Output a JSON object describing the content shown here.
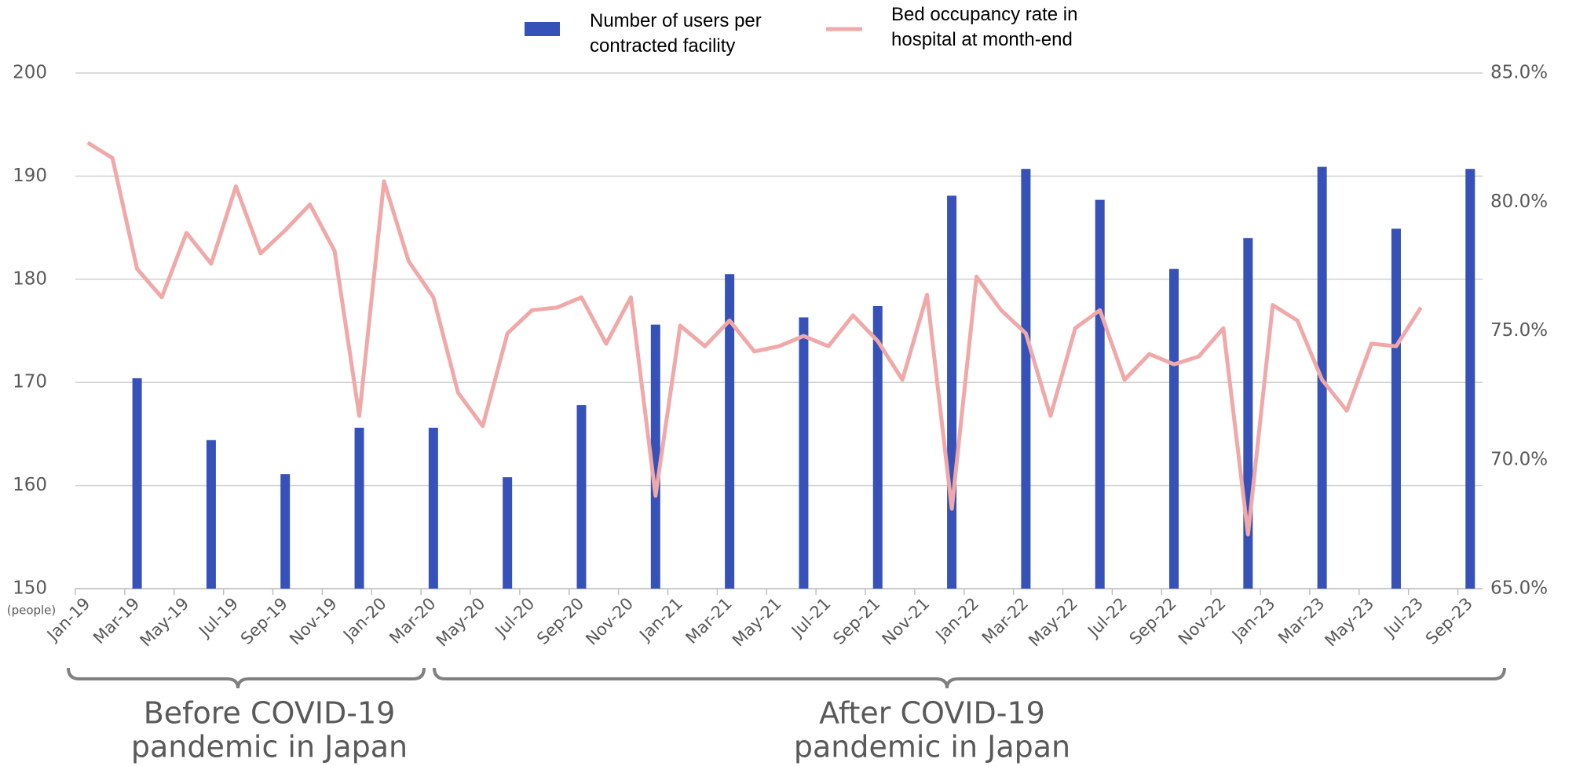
{
  "chart_data": {
    "type": "bar_line",
    "categories": [
      "Jan-19",
      null,
      "Mar-19",
      null,
      "May-19",
      null,
      "Jul-19",
      null,
      "Sep-19",
      null,
      "Nov-19",
      null,
      "Jan-20",
      null,
      "Mar-20",
      null,
      "May-20",
      null,
      "Jul-20",
      null,
      "Sep-20",
      null,
      "Nov-20",
      null,
      "Jan-21",
      null,
      "Mar-21",
      null,
      "May-21",
      null,
      "Jul-21",
      null,
      "Sep-21",
      null,
      "Nov-21",
      null,
      "Jan-22",
      null,
      "Mar-22",
      null,
      "May-22",
      null,
      "Jul-22",
      null,
      "Sep-22",
      null,
      "Nov-22",
      null,
      "Jan-23",
      null,
      "Mar-23",
      null,
      "May-23",
      null,
      "Jul-23",
      null,
      "Sep-23"
    ],
    "series": [
      {
        "name": "Number of users per contracted facility",
        "type": "bar",
        "color": "#3652b8",
        "values": [
          null,
          null,
          170.4,
          null,
          null,
          164.4,
          null,
          null,
          161.1,
          null,
          null,
          165.6,
          null,
          null,
          165.6,
          null,
          null,
          160.8,
          null,
          null,
          167.8,
          null,
          null,
          175.6,
          null,
          null,
          180.5,
          null,
          null,
          176.3,
          null,
          null,
          177.4,
          null,
          null,
          188.1,
          null,
          null,
          190.7,
          null,
          null,
          187.7,
          null,
          null,
          181.0,
          null,
          null,
          184.0,
          null,
          null,
          190.9,
          null,
          null,
          184.9,
          null,
          null,
          190.7
        ]
      },
      {
        "name": "Bed occupancy rate in hospital at month-end",
        "type": "line",
        "axis": "y2",
        "color": "#f0a8a8",
        "values": [
          82.3,
          81.7,
          77.4,
          76.3,
          78.8,
          77.6,
          80.6,
          78.0,
          78.9,
          79.9,
          78.1,
          71.7,
          80.8,
          77.7,
          76.3,
          72.6,
          71.3,
          74.9,
          75.8,
          75.9,
          76.3,
          74.5,
          76.3,
          68.6,
          75.2,
          74.4,
          75.4,
          74.2,
          74.4,
          74.8,
          74.4,
          75.6,
          74.6,
          73.1,
          76.4,
          68.1,
          77.1,
          75.8,
          74.9,
          71.7,
          75.1,
          75.8,
          73.1,
          74.1,
          73.7,
          74.0,
          75.1,
          67.1,
          76.0,
          75.4,
          73.1,
          71.9,
          74.5,
          74.4,
          75.9,
          null,
          null
        ]
      }
    ],
    "ylabel": "(people)",
    "ylim": [
      150,
      200
    ],
    "yticks": [
      150,
      160,
      170,
      180,
      190,
      200
    ],
    "y2lim": [
      65,
      85
    ],
    "y2ticks": [
      {
        "value": 65,
        "label": "65.0%"
      },
      {
        "value": 70,
        "label": "70.0%"
      },
      {
        "value": 75,
        "label": "75.0%"
      },
      {
        "value": 80,
        "label": "80.0%"
      },
      {
        "value": 85,
        "label": "85.0%"
      }
    ],
    "grid": true,
    "annotations": [
      {
        "text": [
          "Before COVID-19",
          "pandemic in Japan"
        ]
      },
      {
        "text": [
          "After COVID-19",
          "pandemic in Japan"
        ]
      }
    ]
  }
}
